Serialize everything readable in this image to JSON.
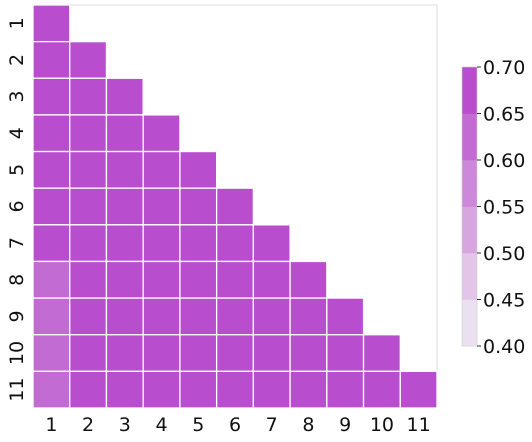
{
  "chart_data": {
    "type": "heatmap",
    "title": "",
    "xlabel": "",
    "ylabel": "",
    "x_labels": [
      "1",
      "2",
      "3",
      "4",
      "5",
      "6",
      "7",
      "8",
      "9",
      "10",
      "11"
    ],
    "y_labels": [
      "1",
      "2",
      "3",
      "4",
      "5",
      "6",
      "7",
      "8",
      "9",
      "10",
      "11"
    ],
    "mask": "upper-triangle",
    "values": [
      [
        0.68
      ],
      [
        0.68,
        0.68
      ],
      [
        0.68,
        0.68,
        0.68
      ],
      [
        0.68,
        0.68,
        0.68,
        0.68
      ],
      [
        0.68,
        0.68,
        0.68,
        0.68,
        0.68
      ],
      [
        0.68,
        0.68,
        0.68,
        0.68,
        0.68,
        0.68
      ],
      [
        0.68,
        0.68,
        0.68,
        0.68,
        0.68,
        0.68,
        0.68
      ],
      [
        0.64,
        0.68,
        0.68,
        0.68,
        0.68,
        0.68,
        0.68,
        0.68
      ],
      [
        0.64,
        0.68,
        0.68,
        0.68,
        0.68,
        0.68,
        0.68,
        0.68,
        0.68
      ],
      [
        0.64,
        0.68,
        0.68,
        0.68,
        0.68,
        0.68,
        0.68,
        0.68,
        0.68,
        0.68
      ],
      [
        0.64,
        0.68,
        0.68,
        0.68,
        0.68,
        0.68,
        0.68,
        0.68,
        0.68,
        0.68,
        0.68
      ]
    ],
    "colorbar": {
      "ticks": [
        "0.40",
        "0.45",
        "0.50",
        "0.55",
        "0.60",
        "0.65",
        "0.70"
      ],
      "min": 0.4,
      "max": 0.7,
      "levels": 6,
      "colors": [
        "#ebe0ef",
        "#e2c5e8",
        "#d7a6e0",
        "#cc88d9",
        "#c26bd3",
        "#b84ecd"
      ]
    },
    "grid": false,
    "legend": "right"
  }
}
